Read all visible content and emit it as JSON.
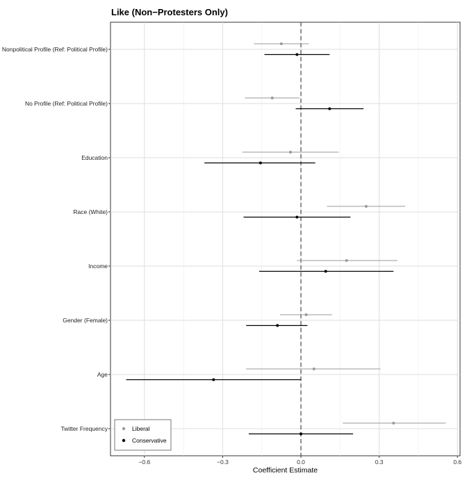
{
  "chart_data": {
    "type": "coefficient-plot",
    "title": "Like (Non−Protesters Only)",
    "xlabel": "Coefficient Estimate",
    "ylabel": "",
    "xlim": [
      -0.73,
      0.61
    ],
    "xticks": [
      -0.6,
      -0.3,
      0.0,
      0.3,
      0.6
    ],
    "xtick_labels": [
      "−0.6",
      "−0.3",
      "0.0",
      "0.3",
      "0.6"
    ],
    "reference_line": 0,
    "categories": [
      "Nonpolitical Profile (Ref: Political Profile)",
      "No Profile (Ref: Political Profile)",
      "Education",
      "Race (White)",
      "Income",
      "Gender (Female)",
      "Age",
      "Twitter Frequency"
    ],
    "series": [
      {
        "name": "Liberal",
        "color": "#999999",
        "estimates": [
          -0.075,
          -0.11,
          -0.04,
          0.25,
          0.175,
          0.02,
          0.05,
          0.355
        ],
        "lower": [
          -0.18,
          -0.215,
          -0.225,
          0.1,
          -0.015,
          -0.08,
          -0.21,
          0.16
        ],
        "upper": [
          0.03,
          -0.005,
          0.145,
          0.4,
          0.37,
          0.12,
          0.305,
          0.555
        ]
      },
      {
        "name": "Conservative",
        "color": "#000000",
        "estimates": [
          -0.015,
          0.11,
          -0.155,
          -0.015,
          0.095,
          -0.09,
          -0.335,
          0.0
        ],
        "lower": [
          -0.14,
          -0.02,
          -0.37,
          -0.22,
          -0.16,
          -0.21,
          -0.67,
          -0.2
        ],
        "upper": [
          0.11,
          0.24,
          0.055,
          0.19,
          0.355,
          0.025,
          0.0,
          0.2
        ]
      }
    ],
    "legend_position": "bottom-left",
    "grid": true
  }
}
